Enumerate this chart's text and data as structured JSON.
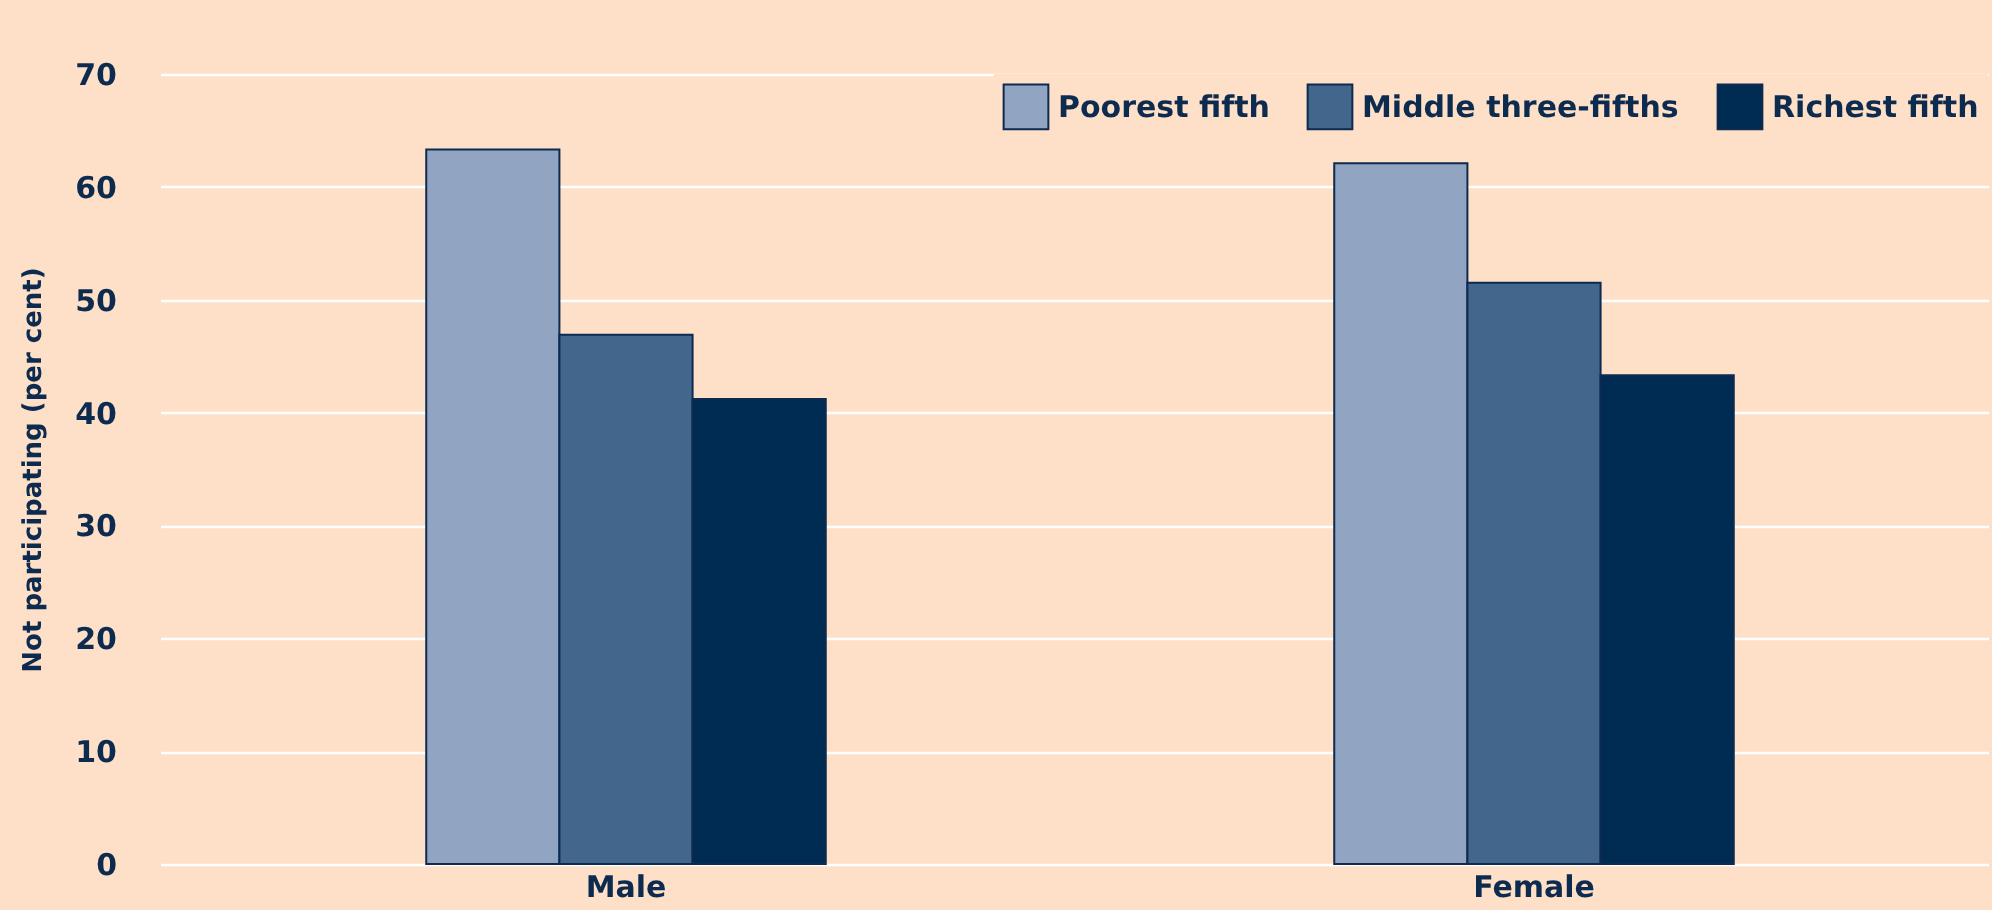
{
  "chart_data": {
    "type": "bar",
    "ylabel": "Not participating (per cent)",
    "categories": [
      "Male",
      "Female"
    ],
    "series": [
      {
        "name": "Poorest fifth",
        "color": "#91a4c1",
        "values": [
          63.3,
          62.1
        ]
      },
      {
        "name": "Middle three-fifths",
        "color": "#42668c",
        "values": [
          46.9,
          51.5
        ]
      },
      {
        "name": "Richest fifth",
        "color": "#002b52",
        "values": [
          41.2,
          43.3
        ]
      }
    ],
    "ylim": [
      0,
      70
    ],
    "yticks": [
      0,
      10,
      20,
      30,
      40,
      50,
      60,
      70
    ],
    "grid": "y",
    "legend": "top right"
  }
}
